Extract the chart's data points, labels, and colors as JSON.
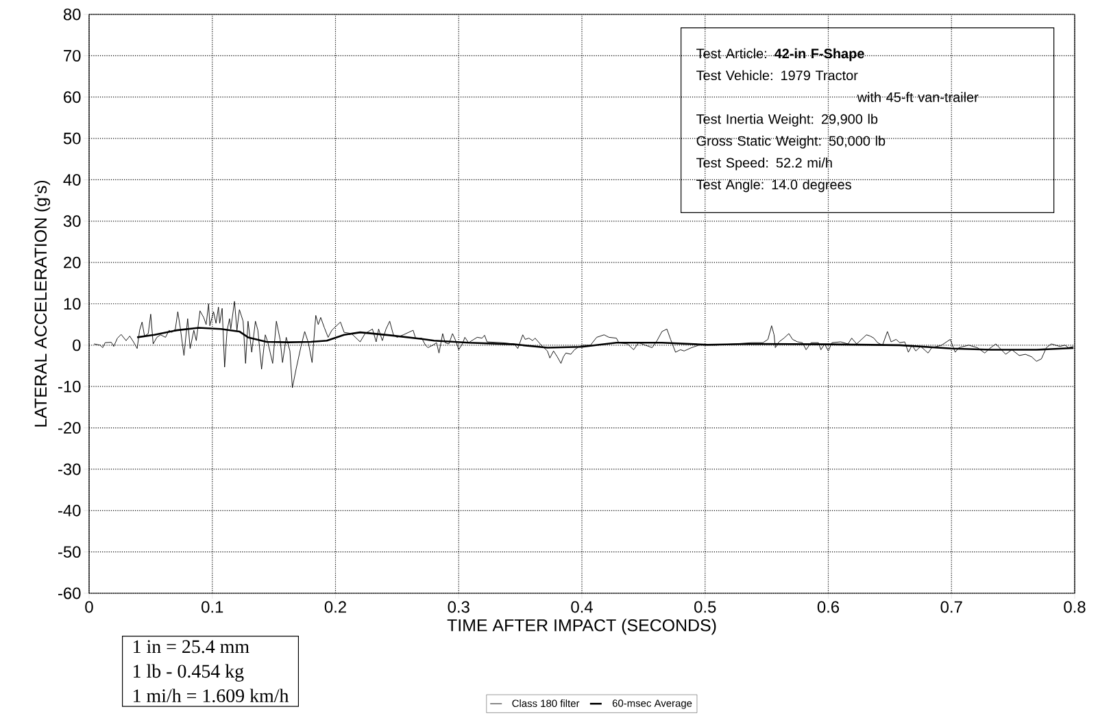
{
  "chart_data": {
    "type": "line",
    "xlabel": "TIME AFTER IMPACT (SECONDS)",
    "ylabel": "LATERAL ACCELERATION (g's)",
    "xlim": [
      0,
      0.8
    ],
    "ylim": [
      -60,
      80
    ],
    "xticks": [
      0,
      0.1,
      0.2,
      0.3,
      0.4,
      0.5,
      0.6,
      0.7,
      0.8
    ],
    "yticks": [
      -60,
      -50,
      -40,
      -30,
      -20,
      -10,
      0,
      10,
      20,
      30,
      40,
      50,
      60,
      70,
      80
    ],
    "grid": true,
    "legend": "bottom",
    "line_style": "solid",
    "marker": "none",
    "annotations": [
      "Test Article:  **42-in F-Shape**",
      "Test Vehicle:  1979 Tractor",
      "with 45-ft van-trailer",
      "Test Inertia Weight:  29,900 lb",
      "Gross Static Weight:  50,000 lb",
      "Test Speed:  52.2 mi/h",
      "Test Angle:  14.0 degrees",
      "1 in = 25.4 mm",
      "1 lb - 0.454 kg",
      "1 mi/h = 1.609 km/h"
    ],
    "series": [
      {
        "name": "Class 180 filter",
        "color": "#000000",
        "x": [
          0.004,
          0.009,
          0.011,
          0.013,
          0.018,
          0.02,
          0.023,
          0.026,
          0.03,
          0.033,
          0.036,
          0.039,
          0.041,
          0.043,
          0.045,
          0.048,
          0.05,
          0.052,
          0.055,
          0.058,
          0.062,
          0.065,
          0.067,
          0.07,
          0.072,
          0.074,
          0.077,
          0.08,
          0.082,
          0.085,
          0.087,
          0.09,
          0.093,
          0.095,
          0.097,
          0.098,
          0.101,
          0.103,
          0.105,
          0.106,
          0.108,
          0.11,
          0.112,
          0.114,
          0.115,
          0.118,
          0.12,
          0.122,
          0.125,
          0.127,
          0.129,
          0.132,
          0.135,
          0.137,
          0.14,
          0.143,
          0.145,
          0.149,
          0.152,
          0.155,
          0.157,
          0.16,
          0.163,
          0.165,
          0.168,
          0.172,
          0.175,
          0.178,
          0.181,
          0.184,
          0.186,
          0.188,
          0.191,
          0.194,
          0.197,
          0.204,
          0.207,
          0.213,
          0.22,
          0.224,
          0.23,
          0.233,
          0.235,
          0.238,
          0.241,
          0.244,
          0.247,
          0.25,
          0.255,
          0.263,
          0.265,
          0.27,
          0.273,
          0.275,
          0.279,
          0.282,
          0.284,
          0.287,
          0.289,
          0.292,
          0.295,
          0.298,
          0.3,
          0.303,
          0.305,
          0.308,
          0.315,
          0.319,
          0.321,
          0.323,
          0.335,
          0.345,
          0.348,
          0.352,
          0.354,
          0.357,
          0.36,
          0.362,
          0.367,
          0.372,
          0.374,
          0.377,
          0.38,
          0.383,
          0.385,
          0.387,
          0.391,
          0.394,
          0.398,
          0.401,
          0.407,
          0.412,
          0.418,
          0.422,
          0.428,
          0.43,
          0.437,
          0.442,
          0.446,
          0.457,
          0.461,
          0.465,
          0.469,
          0.472,
          0.476,
          0.48,
          0.483,
          0.489,
          0.495,
          0.502,
          0.509,
          0.517,
          0.528,
          0.538,
          0.547,
          0.551,
          0.554,
          0.556,
          0.557,
          0.56,
          0.564,
          0.568,
          0.571,
          0.575,
          0.579,
          0.582,
          0.586,
          0.592,
          0.594,
          0.597,
          0.6,
          0.603,
          0.61,
          0.616,
          0.619,
          0.623,
          0.631,
          0.634,
          0.637,
          0.64,
          0.644,
          0.648,
          0.651,
          0.655,
          0.658,
          0.662,
          0.665,
          0.668,
          0.671,
          0.675,
          0.681,
          0.684,
          0.688,
          0.692,
          0.699,
          0.703,
          0.706,
          0.714,
          0.721,
          0.727,
          0.731,
          0.736,
          0.744,
          0.749,
          0.755,
          0.76,
          0.765,
          0.769,
          0.773,
          0.777,
          0.781,
          0.788,
          0.792,
          0.795,
          0.799
        ],
        "values": [
          0.3,
          0,
          -0.6,
          0.6,
          0.7,
          -0.3,
          1.7,
          2.6,
          1.1,
          2.2,
          0.8,
          -0.8,
          3.6,
          5.6,
          2.2,
          2.8,
          7.5,
          0.3,
          1.9,
          2.5,
          1.9,
          3.6,
          3.1,
          3.9,
          8.1,
          4.2,
          -2.5,
          6.4,
          -0.8,
          3.6,
          1.1,
          8.3,
          6.7,
          5.0,
          10,
          4.7,
          8.1,
          5.3,
          9.2,
          5.3,
          8.9,
          -5.3,
          3.6,
          6.4,
          3.9,
          10.6,
          3.6,
          8.6,
          5.8,
          -4.4,
          5.8,
          -1.7,
          5.8,
          3.6,
          -5.8,
          2.5,
          0.8,
          -4.4,
          5.8,
          1.4,
          -4.2,
          1.9,
          -1.4,
          -10.3,
          -5.8,
          -0.3,
          3.3,
          0.6,
          -4.2,
          7.2,
          5.0,
          6.7,
          4.2,
          1.9,
          3.6,
          5.6,
          3.1,
          2.8,
          0.8,
          2.8,
          3.9,
          0.8,
          3.9,
          1.1,
          3.9,
          5.8,
          2.5,
          1.9,
          2.5,
          3.6,
          1.7,
          1.7,
          0,
          -0.6,
          0,
          0.6,
          -1.9,
          2.8,
          0.6,
          0.3,
          2.8,
          0.8,
          -1.1,
          0.3,
          1.9,
          0.6,
          1.9,
          1.7,
          2.4,
          0.8,
          0.6,
          0.3,
          -0.8,
          2.5,
          1.4,
          1.7,
          1.1,
          1.7,
          0,
          -1.4,
          -3.1,
          -1.4,
          -2.8,
          -4.4,
          -2.8,
          -1.9,
          -2.2,
          -1.1,
          -0.3,
          0,
          0,
          1.9,
          2.5,
          1.9,
          1.7,
          0.6,
          0.3,
          -1.1,
          0.6,
          -0.6,
          1.1,
          3.3,
          3.9,
          1.4,
          -1.7,
          -1.1,
          -1.4,
          -0.6,
          0,
          0,
          0,
          0.2,
          0.4,
          0.6,
          0.6,
          1.4,
          4.7,
          2.5,
          -0.6,
          0.8,
          1.7,
          2.8,
          1.4,
          0.8,
          0.6,
          -1.1,
          0.6,
          0.6,
          -1.1,
          0.3,
          -1.4,
          0.6,
          0.8,
          0.3,
          1.7,
          0.3,
          2.5,
          2.2,
          1.7,
          0.6,
          0,
          3.3,
          0.8,
          1.4,
          0.6,
          0.8,
          -1.7,
          0,
          -1.4,
          -0.3,
          -1.9,
          -0.6,
          -0.3,
          0,
          1.4,
          -1.7,
          -0.6,
          0,
          -0.6,
          -1.9,
          -0.8,
          0.3,
          -2.2,
          -1.1,
          -2.5,
          -2.2,
          -2.8,
          -3.9,
          -3.3,
          -0.6,
          0.3,
          -0.3,
          0,
          -0.6,
          -0.3
        ]
      },
      {
        "name": "60-msec Average",
        "color": "#000000",
        "x": [
          0.039,
          0.053,
          0.071,
          0.089,
          0.107,
          0.122,
          0.129,
          0.144,
          0.162,
          0.18,
          0.193,
          0.207,
          0.22,
          0.244,
          0.27,
          0.28,
          0.308,
          0.345,
          0.372,
          0.4,
          0.428,
          0.465,
          0.502,
          0.54,
          0.6,
          0.658,
          0.7,
          0.732,
          0.769,
          0.799
        ],
        "values": [
          1.9,
          2.5,
          3.6,
          4.2,
          3.9,
          3.3,
          1.9,
          0.8,
          0.7,
          0.8,
          1.1,
          2.5,
          3.1,
          2.4,
          1.5,
          1.1,
          0.6,
          0.2,
          -0.6,
          -0.4,
          0.6,
          0.6,
          0.1,
          0.3,
          0.2,
          0,
          -0.8,
          -1.1,
          -1.1,
          -0.7
        ]
      }
    ]
  }
}
